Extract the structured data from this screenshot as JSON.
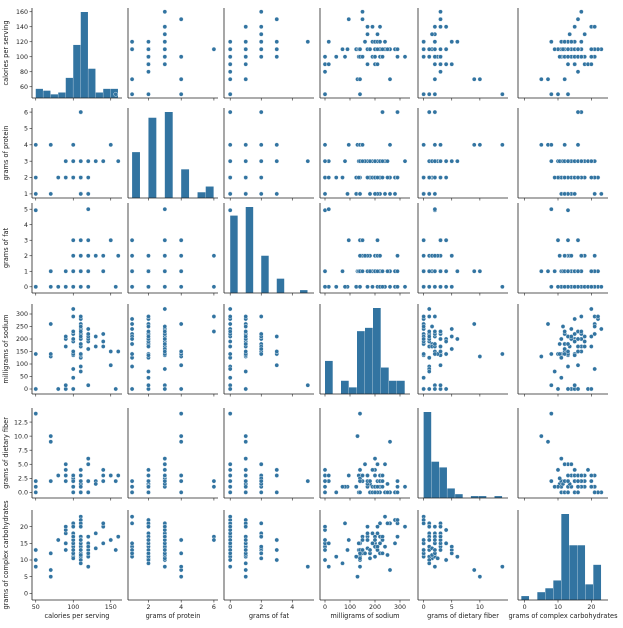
{
  "chart_data": {
    "type": "scatter",
    "description_kind": "pairplot",
    "color": "#3274a1",
    "variables": [
      {
        "key": "calories",
        "label": "calories per serving",
        "ticks": [
          50,
          100,
          150
        ],
        "ylim_ticks": [
          60,
          80,
          100,
          120,
          140,
          160
        ],
        "range": [
          45,
          165
        ],
        "hist_bins": [
          [
            50,
            60,
            5
          ],
          [
            60,
            70,
            4
          ],
          [
            70,
            80,
            2
          ],
          [
            80,
            90,
            3
          ],
          [
            90,
            100,
            11
          ],
          [
            100,
            110,
            29
          ],
          [
            110,
            120,
            47
          ],
          [
            120,
            130,
            16
          ],
          [
            130,
            140,
            3
          ],
          [
            140,
            150,
            5
          ],
          [
            150,
            160,
            5
          ]
        ]
      },
      {
        "key": "protein",
        "label": "grams of protein",
        "ticks": [
          2,
          4,
          6
        ],
        "ylim_ticks": [
          1,
          2,
          3,
          4,
          5,
          6
        ],
        "range": [
          0.75,
          6.25
        ],
        "hist_bins": [
          [
            1,
            1.5,
            8
          ],
          [
            1.5,
            2,
            0
          ],
          [
            2,
            2.5,
            14
          ],
          [
            2.5,
            3,
            0
          ],
          [
            3,
            3.5,
            15
          ],
          [
            3.5,
            4,
            0
          ],
          [
            4,
            4.5,
            5
          ],
          [
            4.5,
            5,
            0
          ],
          [
            5,
            5.5,
            1
          ],
          [
            5.5,
            6,
            2
          ]
        ]
      },
      {
        "key": "fat",
        "label": "grams of fat",
        "ticks": [
          0,
          2,
          4
        ],
        "ylim_ticks": [
          0,
          1,
          2,
          3,
          4,
          5
        ],
        "range": [
          -0.4,
          5.4
        ],
        "hist_bins": [
          [
            0,
            0.5,
            27
          ],
          [
            0.5,
            1,
            0
          ],
          [
            1,
            1.5,
            30
          ],
          [
            1.5,
            2,
            0
          ],
          [
            2,
            2.5,
            13
          ],
          [
            2.5,
            3,
            0
          ],
          [
            3,
            3.5,
            5
          ],
          [
            3.5,
            4,
            0
          ],
          [
            4,
            4.5,
            0
          ],
          [
            4.5,
            5,
            1
          ]
        ]
      },
      {
        "key": "sodium",
        "label": "milligrams of sodium",
        "ticks": [
          0,
          100,
          200,
          300
        ],
        "ylim_ticks": [
          0,
          50,
          100,
          150,
          200,
          250,
          300
        ],
        "range": [
          -20,
          340
        ],
        "hist_bins": [
          [
            0,
            32,
            10
          ],
          [
            32,
            64,
            0
          ],
          [
            64,
            96,
            4
          ],
          [
            96,
            128,
            2
          ],
          [
            128,
            160,
            19
          ],
          [
            160,
            192,
            20
          ],
          [
            192,
            224,
            26
          ],
          [
            224,
            256,
            8
          ],
          [
            256,
            288,
            4
          ],
          [
            288,
            320,
            4
          ]
        ]
      },
      {
        "key": "fiber",
        "label": "grams of dietary fiber",
        "ticks": [
          0,
          5,
          10
        ],
        "ylim_ticks": [
          0.0,
          2.5,
          5.0,
          7.5,
          10.0,
          12.5
        ],
        "range": [
          -1,
          15
        ],
        "hist_bins": [
          [
            0,
            1.4,
            45
          ],
          [
            1.4,
            2.8,
            19
          ],
          [
            2.8,
            4.2,
            16
          ],
          [
            4.2,
            5.6,
            5
          ],
          [
            5.6,
            7,
            2
          ],
          [
            7,
            8.4,
            0
          ],
          [
            8.4,
            9.8,
            1
          ],
          [
            9.8,
            11.2,
            1
          ],
          [
            11.2,
            12.6,
            0
          ],
          [
            12.6,
            14,
            1
          ]
        ]
      },
      {
        "key": "carbo",
        "label": "grams of complex carbohydrates",
        "ticks": [
          0,
          10,
          20
        ],
        "ylim_ticks": [
          0,
          5,
          10,
          15,
          20
        ],
        "range": [
          -2,
          25
        ],
        "hist_bins": [
          [
            -1,
            1.4,
            1
          ],
          [
            1.4,
            3.8,
            0
          ],
          [
            3.8,
            6.2,
            2
          ],
          [
            6.2,
            8.6,
            3
          ],
          [
            8.6,
            11,
            5
          ],
          [
            11,
            13.4,
            22
          ],
          [
            13.4,
            15.8,
            14
          ],
          [
            15.8,
            18.2,
            14
          ],
          [
            18.2,
            20.6,
            4
          ],
          [
            20.6,
            23,
            9
          ]
        ]
      }
    ],
    "records": [
      [
        70,
        4,
        1,
        130,
        10,
        5
      ],
      [
        120,
        3,
        5,
        15,
        2,
        8
      ],
      [
        70,
        4,
        1,
        260,
        9,
        7
      ],
      [
        50,
        4,
        0,
        140,
        14,
        8
      ],
      [
        110,
        2,
        2,
        200,
        1,
        14
      ],
      [
        110,
        2,
        2,
        180,
        1.5,
        10.5
      ],
      [
        110,
        2,
        0,
        125,
        1,
        11
      ],
      [
        130,
        3,
        2,
        210,
        2,
        18
      ],
      [
        90,
        2,
        1,
        200,
        4,
        15
      ],
      [
        90,
        3,
        0,
        210,
        5,
        13
      ],
      [
        120,
        1,
        2,
        220,
        0,
        12
      ],
      [
        110,
        6,
        2,
        290,
        2,
        17
      ],
      [
        120,
        1,
        3,
        210,
        0,
        13
      ],
      [
        110,
        3,
        2,
        140,
        2,
        13
      ],
      [
        110,
        1,
        1,
        180,
        0,
        12
      ],
      [
        110,
        2,
        0,
        280,
        0,
        22
      ],
      [
        100,
        2,
        0,
        290,
        1,
        21
      ],
      [
        110,
        1,
        0,
        90,
        1,
        13
      ],
      [
        110,
        1,
        1,
        180,
        0,
        12
      ],
      [
        110,
        3,
        3,
        140,
        4,
        10
      ],
      [
        100,
        3,
        0,
        80,
        1,
        21
      ],
      [
        110,
        2,
        0,
        220,
        1,
        21
      ],
      [
        100,
        2,
        1,
        140,
        2,
        11
      ],
      [
        100,
        2,
        0,
        190,
        1,
        18
      ],
      [
        110,
        1,
        0,
        125,
        1,
        11
      ],
      [
        110,
        1,
        1,
        200,
        1,
        14
      ],
      [
        100,
        3,
        1,
        0,
        3,
        14
      ],
      [
        120,
        3,
        2,
        160,
        5,
        12
      ],
      [
        120,
        3,
        0,
        240,
        5,
        14
      ],
      [
        110,
        2,
        1,
        135,
        0,
        13
      ],
      [
        100,
        2,
        0,
        45,
        0,
        11
      ],
      [
        110,
        1,
        1,
        280,
        0,
        15
      ],
      [
        100,
        3,
        1,
        140,
        3,
        15
      ],
      [
        110,
        3,
        0,
        170,
        3,
        17
      ],
      [
        110,
        2,
        1,
        170,
        1,
        17
      ],
      [
        110,
        1,
        0,
        260,
        0,
        21
      ],
      [
        110,
        3,
        3,
        140,
        4,
        10
      ],
      [
        110,
        2,
        1,
        180,
        0,
        12
      ],
      [
        110,
        2,
        1,
        170,
        1,
        16
      ],
      [
        140,
        3,
        1,
        170,
        2,
        20
      ],
      [
        110,
        2,
        1,
        260,
        0,
        21
      ],
      [
        100,
        4,
        2,
        150,
        2,
        12
      ],
      [
        110,
        2,
        1,
        180,
        0,
        12
      ],
      [
        100,
        4,
        1,
        0,
        0,
        16
      ],
      [
        150,
        4,
        3,
        95,
        3,
        16
      ],
      [
        150,
        4,
        3,
        150,
        3,
        16
      ],
      [
        160,
        3,
        2,
        150,
        3,
        17
      ],
      [
        100,
        2,
        1,
        220,
        2,
        15
      ],
      [
        120,
        2,
        1,
        190,
        0,
        15
      ],
      [
        140,
        3,
        2,
        220,
        3,
        21
      ],
      [
        90,
        3,
        0,
        170,
        3,
        18
      ],
      [
        130,
        3,
        2,
        170,
        1.5,
        13.5
      ],
      [
        120,
        3,
        1,
        200,
        6,
        11
      ],
      [
        100,
        3,
        0,
        320,
        1,
        20
      ],
      [
        50,
        1,
        0,
        0,
        0,
        13
      ],
      [
        50,
        2,
        0,
        0,
        1,
        10
      ],
      [
        100,
        4,
        3,
        150,
        3,
        16
      ],
      [
        100,
        3,
        1,
        135,
        3,
        15
      ],
      [
        120,
        3,
        2,
        210,
        5,
        14
      ],
      [
        100,
        3,
        2,
        140,
        2.5,
        10.5
      ],
      [
        90,
        2,
        0,
        0,
        2,
        15
      ],
      [
        110,
        1,
        0,
        240,
        0,
        23
      ],
      [
        110,
        2,
        1,
        290,
        0,
        22
      ],
      [
        80,
        2,
        0,
        0,
        3,
        16
      ],
      [
        90,
        3,
        0,
        0,
        4,
        19
      ],
      [
        90,
        3,
        0,
        0,
        3,
        20
      ],
      [
        110,
        2,
        1,
        70,
        1,
        9
      ],
      [
        110,
        6,
        0,
        230,
        1,
        16
      ],
      [
        90,
        2,
        0,
        15,
        3,
        15
      ],
      [
        110,
        2,
        1,
        200,
        0,
        16
      ],
      [
        140,
        3,
        1,
        190,
        4,
        15
      ],
      [
        100,
        3,
        1,
        200,
        3,
        16
      ],
      [
        110,
        2,
        1,
        250,
        0,
        21
      ],
      [
        110,
        1,
        1,
        140,
        0,
        13
      ],
      [
        100,
        3,
        1,
        230,
        3,
        17
      ],
      [
        100,
        3,
        1,
        200,
        3,
        17
      ],
      [
        110,
        2,
        1,
        200,
        1,
        16
      ],
      [
        50,
        0,
        0,
        0,
        2,
        13
      ],
      [
        120,
        3,
        2,
        220,
        2,
        17
      ],
      [
        110,
        3,
        1,
        250,
        1.5,
        11.5
      ],
      [
        100,
        3,
        1,
        230,
        3,
        17
      ],
      [
        110,
        2,
        1,
        170,
        2,
        16
      ],
      [
        120,
        3,
        2,
        160,
        5,
        12
      ],
      [
        110,
        2,
        1,
        210,
        1,
        20
      ],
      [
        100,
        2,
        1,
        230,
        2,
        12
      ],
      [
        70,
        1,
        0,
        140,
        2,
        12
      ],
      [
        100,
        3,
        1,
        150,
        3,
        13
      ],
      [
        110,
        3,
        1,
        180,
        2,
        13
      ]
    ]
  }
}
